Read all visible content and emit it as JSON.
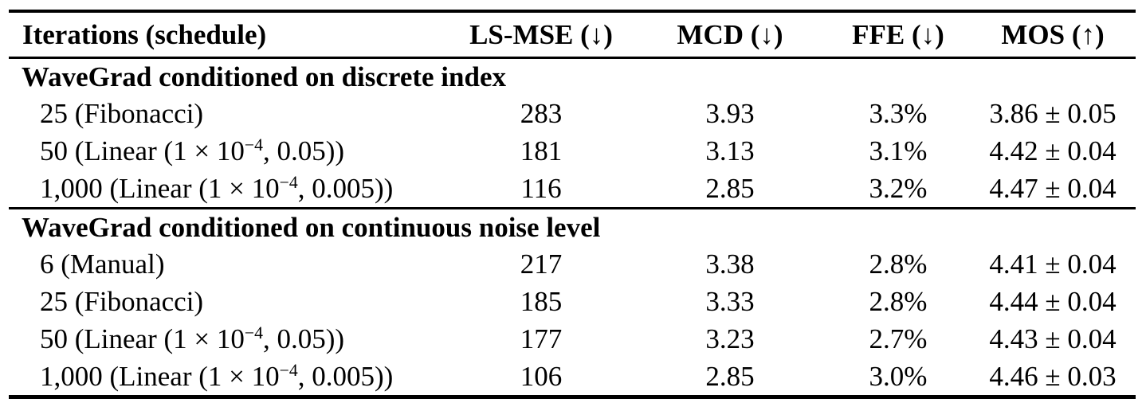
{
  "table": {
    "columns": [
      {
        "label": "Iterations (schedule)"
      },
      {
        "label": "LS-MSE (↓)"
      },
      {
        "label": "MCD (↓)"
      },
      {
        "label": "FFE (↓)"
      },
      {
        "label": "MOS (↑)"
      }
    ],
    "sections": [
      {
        "header": "WaveGrad conditioned on discrete index",
        "rows": [
          {
            "schedule": "25 (Fibonacci)",
            "ls_mse": "283",
            "mcd": "3.93",
            "ffe": "3.3%",
            "mos": "3.86 ± 0.05"
          },
          {
            "schedule": "50 (Linear (1 × 10^{−4}, 0.05))",
            "ls_mse": "181",
            "mcd": "3.13",
            "ffe": "3.1%",
            "mos": "4.42 ± 0.04"
          },
          {
            "schedule": "1,000 (Linear (1 × 10^{−4}, 0.005))",
            "ls_mse": "116",
            "mcd": "2.85",
            "ffe": "3.2%",
            "mos": "4.47 ± 0.04"
          }
        ]
      },
      {
        "header": "WaveGrad conditioned on continuous noise level",
        "rows": [
          {
            "schedule": "6 (Manual)",
            "ls_mse": "217",
            "mcd": "3.38",
            "ffe": "2.8%",
            "mos": "4.41 ± 0.04"
          },
          {
            "schedule": "25 (Fibonacci)",
            "ls_mse": "185",
            "mcd": "3.33",
            "ffe": "2.8%",
            "mos": "4.44 ± 0.04"
          },
          {
            "schedule": "50 (Linear (1 × 10^{−4}, 0.05))",
            "ls_mse": "177",
            "mcd": "3.23",
            "ffe": "2.7%",
            "mos": "4.43 ± 0.04"
          },
          {
            "schedule": "1,000 (Linear (1 × 10^{−4}, 0.005))",
            "ls_mse": "106",
            "mcd": "2.85",
            "ffe": "3.0%",
            "mos": "4.46 ± 0.03"
          }
        ]
      }
    ]
  }
}
